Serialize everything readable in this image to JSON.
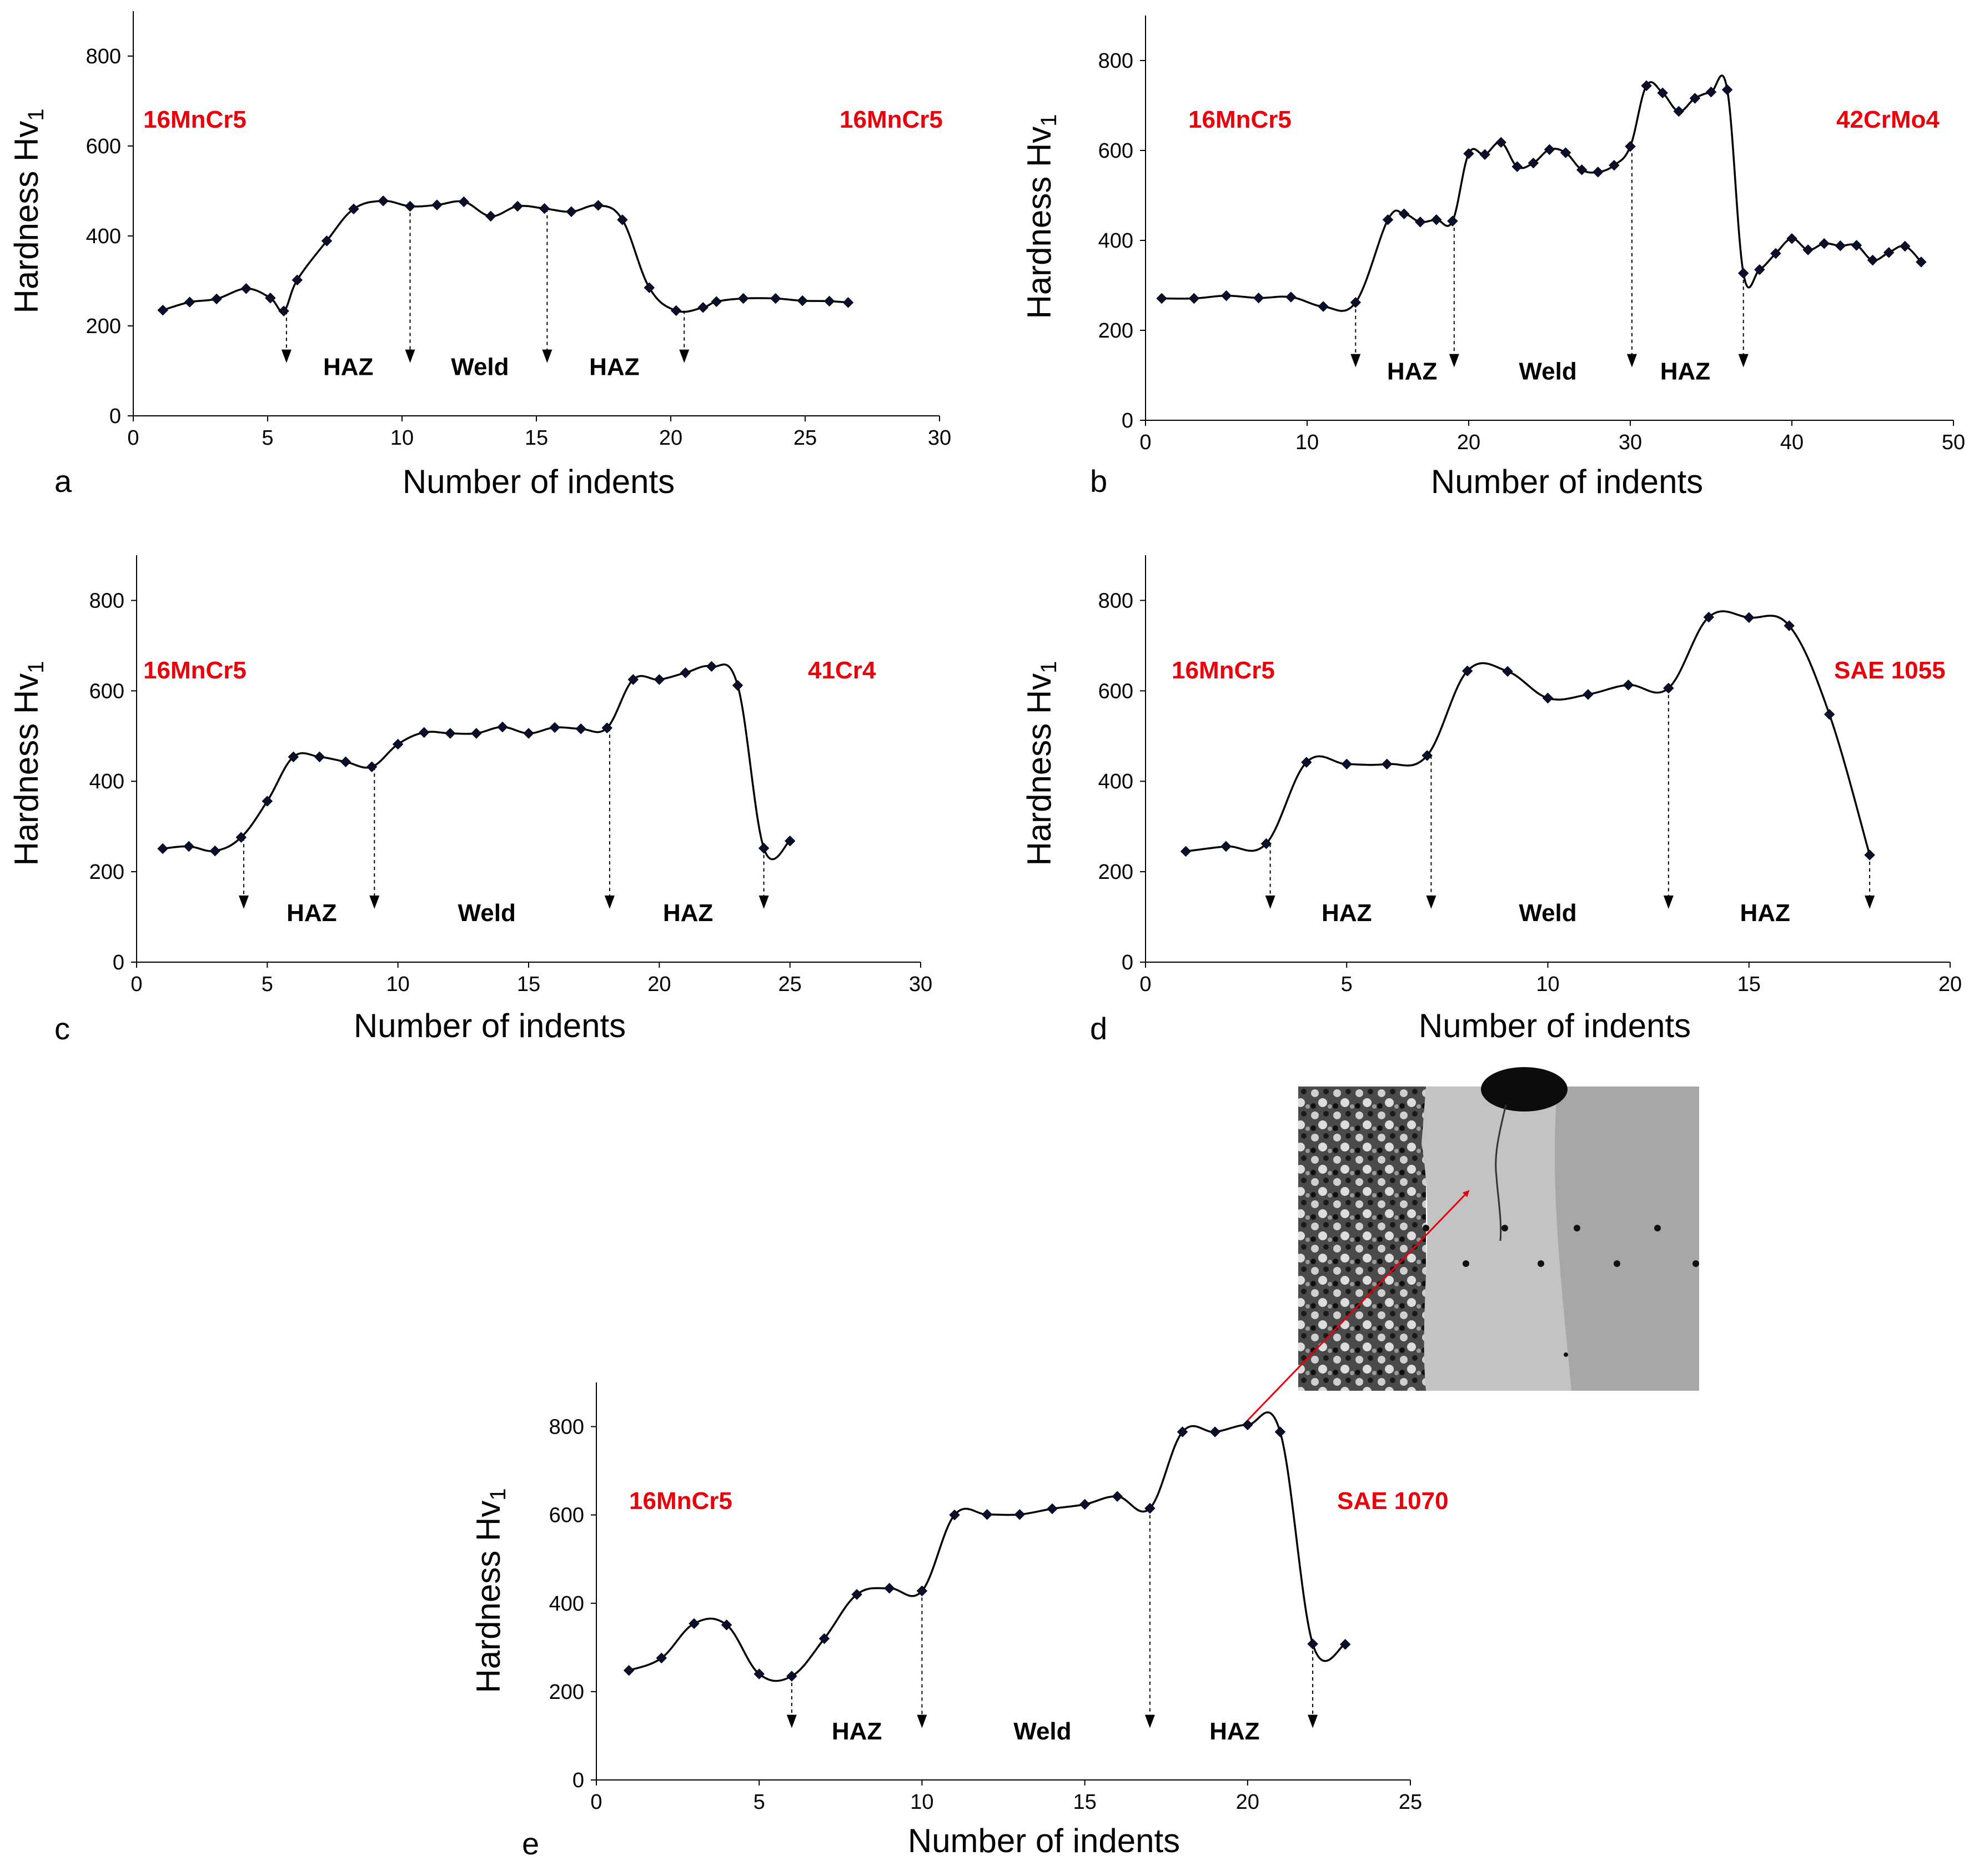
{
  "figure": {
    "colors": {
      "material_label": "#e8000b",
      "curve": "#000000",
      "marker": "#0a0f2e",
      "annotation_arrow": "#e8000b"
    }
  },
  "chart_data": [
    {
      "id": "a",
      "panel_label": "a",
      "type": "line",
      "xlabel": "Number of indents",
      "ylabel": "Hardness Hv",
      "ylabel_subscript": "1",
      "xlim": [
        0,
        30
      ],
      "ylim": [
        0,
        900
      ],
      "xticks": [
        0,
        5,
        10,
        15,
        20,
        25,
        30
      ],
      "yticks": [
        0,
        200,
        400,
        600,
        800
      ],
      "x": [
        1.1,
        2.1,
        3.1,
        4.2,
        5.1,
        5.6,
        6.1,
        7.2,
        8.2,
        9.3,
        10.3,
        11.3,
        12.3,
        13.3,
        14.3,
        15.3,
        16.3,
        17.3,
        18.2,
        19.2,
        20.2,
        21.2,
        21.7,
        22.7,
        23.9,
        24.9,
        25.9,
        26.6
      ],
      "y": [
        235,
        253,
        260,
        283,
        262,
        233,
        302,
        389,
        460,
        478,
        466,
        469,
        476,
        444,
        466,
        461,
        454,
        468,
        436,
        285,
        234,
        241,
        254,
        261,
        261,
        256,
        255,
        252
      ],
      "boundaries": [
        5.7,
        10.3,
        15.4,
        20.5
      ],
      "materials": {
        "left": "16MnCr5",
        "right": "16MnCr5"
      },
      "zones": [
        {
          "label": "HAZ",
          "x": 8.0
        },
        {
          "label": "Weld",
          "x": 12.9
        },
        {
          "label": "HAZ",
          "x": 17.9
        }
      ]
    },
    {
      "id": "b",
      "panel_label": "b",
      "type": "line",
      "xlabel": "Number of indents",
      "ylabel": "Hardness Hv",
      "ylabel_subscript": "1",
      "xlim": [
        0,
        50
      ],
      "ylim": [
        0,
        900
      ],
      "xticks": [
        0,
        10,
        20,
        30,
        40,
        50
      ],
      "yticks": [
        0,
        200,
        400,
        600,
        800
      ],
      "x": [
        1,
        3,
        5,
        7,
        9,
        11,
        13,
        15,
        16,
        17,
        18,
        19,
        20,
        21,
        22,
        23,
        24,
        25,
        26,
        27,
        28,
        29,
        30,
        31,
        32,
        33,
        34,
        35,
        36,
        37,
        38,
        39,
        40,
        41,
        42,
        43,
        44,
        45,
        46,
        47,
        48
      ],
      "y": [
        271,
        271,
        277,
        272,
        274,
        253,
        262,
        446,
        459,
        441,
        446,
        443,
        593,
        591,
        618,
        564,
        572,
        602,
        595,
        557,
        552,
        567,
        609,
        744,
        728,
        687,
        716,
        730,
        735,
        327,
        335,
        371,
        404,
        379,
        393,
        388,
        389,
        356,
        373,
        387,
        352
      ],
      "boundaries": [
        13,
        19.1,
        30.1,
        37
      ],
      "materials": {
        "left": "16MnCr5",
        "right": "42CrMo4"
      },
      "zones": [
        {
          "label": "HAZ",
          "x": 16.5
        },
        {
          "label": "Weld",
          "x": 24.9
        },
        {
          "label": "HAZ",
          "x": 33.4
        }
      ]
    },
    {
      "id": "c",
      "panel_label": "c",
      "type": "line",
      "xlabel": "Number of indents",
      "ylabel": "Hardness Hv",
      "ylabel_subscript": "1",
      "xlim": [
        0,
        30
      ],
      "ylim": [
        0,
        900
      ],
      "xticks": [
        0,
        5,
        10,
        15,
        20,
        25,
        30
      ],
      "yticks": [
        0,
        200,
        400,
        600,
        800
      ],
      "x": [
        1,
        2,
        3,
        4,
        5,
        6,
        7,
        8,
        9,
        10,
        11,
        12,
        13,
        14,
        15,
        16,
        17,
        18,
        19,
        20,
        21,
        22,
        23,
        24,
        25
      ],
      "y": [
        251,
        256,
        246,
        276,
        356,
        454,
        454,
        443,
        432,
        482,
        508,
        506,
        506,
        520,
        506,
        519,
        516,
        518,
        625,
        625,
        640,
        654,
        612,
        252,
        268
      ],
      "boundaries": [
        4.1,
        9.1,
        18.1,
        24
      ],
      "materials": {
        "left": "16MnCr5",
        "right": "41Cr4"
      },
      "zones": [
        {
          "label": "HAZ",
          "x": 6.7
        },
        {
          "label": "Weld",
          "x": 13.4
        },
        {
          "label": "HAZ",
          "x": 21.1
        }
      ]
    },
    {
      "id": "d",
      "panel_label": "d",
      "type": "line",
      "xlabel": "Number of indents",
      "ylabel": "Hardness Hv",
      "ylabel_subscript": "1",
      "xlim": [
        0,
        20
      ],
      "ylim": [
        0,
        900
      ],
      "xticks": [
        0,
        5,
        10,
        15,
        20
      ],
      "yticks": [
        0,
        200,
        400,
        600,
        800
      ],
      "x": [
        1,
        2,
        3,
        4,
        5,
        6,
        7,
        8,
        9,
        10,
        11,
        12,
        13,
        14,
        15,
        16,
        17,
        18
      ],
      "y": [
        245,
        256,
        262,
        442,
        438,
        438,
        457,
        644,
        643,
        584,
        592,
        613,
        606,
        763,
        762,
        744,
        548,
        237
      ],
      "boundaries": [
        3.1,
        7.1,
        13,
        18
      ],
      "materials": {
        "left": "16MnCr5",
        "right": "SAE 1055"
      },
      "zones": [
        {
          "label": "HAZ",
          "x": 5.0
        },
        {
          "label": "Weld",
          "x": 10.0
        },
        {
          "label": "HAZ",
          "x": 15.4
        }
      ]
    },
    {
      "id": "e",
      "panel_label": "e",
      "type": "line",
      "xlabel": "Number of indents",
      "ylabel": "Hardness Hv",
      "ylabel_subscript": "1",
      "xlim": [
        0,
        25
      ],
      "ylim": [
        0,
        900
      ],
      "xticks": [
        0,
        5,
        10,
        15,
        20,
        25
      ],
      "yticks": [
        0,
        200,
        400,
        600,
        800
      ],
      "x": [
        1,
        2,
        3,
        4,
        5,
        6,
        7,
        8,
        9,
        10,
        11,
        12,
        13,
        14,
        15,
        16,
        17,
        18,
        19,
        20,
        21,
        22,
        23
      ],
      "y": [
        248,
        276,
        354,
        351,
        240,
        235,
        320,
        420,
        434,
        428,
        600,
        601,
        601,
        614,
        624,
        642,
        615,
        788,
        788,
        804,
        788,
        308,
        307
      ],
      "boundaries": [
        6,
        10,
        17,
        22
      ],
      "materials": {
        "left": "16MnCr5",
        "right": "SAE 1070"
      },
      "zones": [
        {
          "label": "HAZ",
          "x": 8.0
        },
        {
          "label": "Weld",
          "x": 13.7
        },
        {
          "label": "HAZ",
          "x": 19.6
        }
      ],
      "annotation": {
        "from_index": 19,
        "description": "micrograph of weld/HAZ region with indents"
      }
    }
  ]
}
